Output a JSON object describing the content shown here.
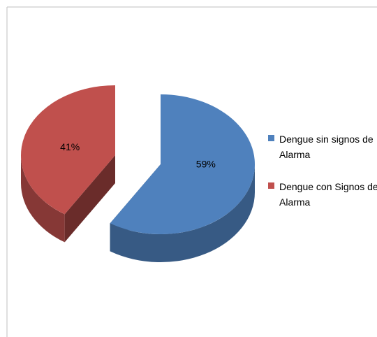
{
  "chart_data": {
    "type": "pie",
    "categories": [
      "Dengue sin signos de Alarma",
      "Dengue con Signos de Alarma"
    ],
    "values": [
      59,
      41
    ],
    "value_labels": [
      "59%",
      "41%"
    ],
    "colors": [
      "#4f81bd",
      "#c0504d"
    ],
    "legend": "right"
  }
}
